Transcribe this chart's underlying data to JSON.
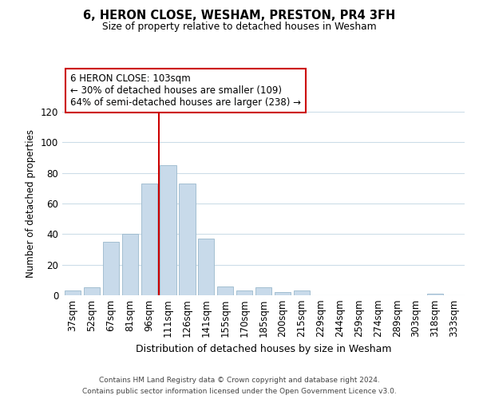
{
  "title": "6, HERON CLOSE, WESHAM, PRESTON, PR4 3FH",
  "subtitle": "Size of property relative to detached houses in Wesham",
  "xlabel": "Distribution of detached houses by size in Wesham",
  "ylabel": "Number of detached properties",
  "bar_labels": [
    "37sqm",
    "52sqm",
    "67sqm",
    "81sqm",
    "96sqm",
    "111sqm",
    "126sqm",
    "141sqm",
    "155sqm",
    "170sqm",
    "185sqm",
    "200sqm",
    "215sqm",
    "229sqm",
    "244sqm",
    "259sqm",
    "274sqm",
    "289sqm",
    "303sqm",
    "318sqm",
    "333sqm"
  ],
  "bar_values": [
    3,
    5,
    35,
    40,
    73,
    85,
    73,
    37,
    6,
    3,
    5,
    2,
    3,
    0,
    0,
    0,
    0,
    0,
    0,
    1,
    0
  ],
  "bar_color": "#c8daea",
  "bar_edgecolor": "#9ab8cc",
  "vline_x": 4.5,
  "vline_color": "#cc0000",
  "ylim": [
    0,
    120
  ],
  "yticks": [
    0,
    20,
    40,
    60,
    80,
    100,
    120
  ],
  "annotation_title": "6 HERON CLOSE: 103sqm",
  "annotation_line1": "← 30% of detached houses are smaller (109)",
  "annotation_line2": "64% of semi-detached houses are larger (238) →",
  "box_color": "#ffffff",
  "box_edgecolor": "#cc0000",
  "footer1": "Contains HM Land Registry data © Crown copyright and database right 2024.",
  "footer2": "Contains public sector information licensed under the Open Government Licence v3.0.",
  "background_color": "#ffffff",
  "grid_color": "#ccdde8"
}
